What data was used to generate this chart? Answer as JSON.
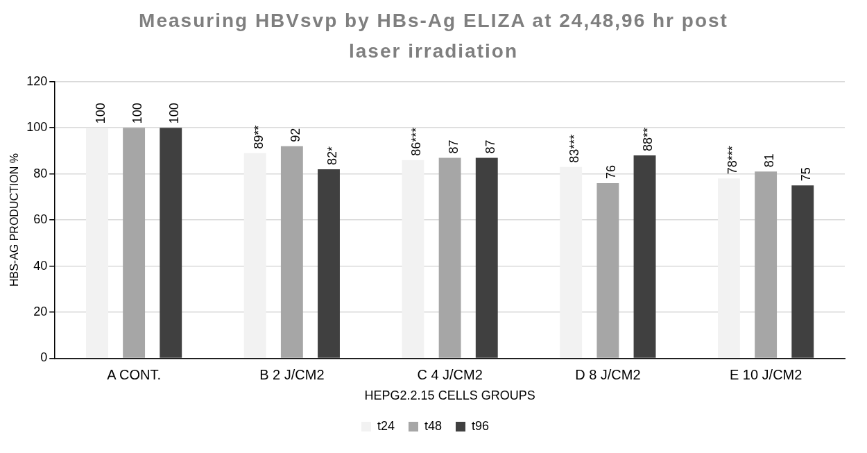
{
  "chart_data": {
    "type": "bar",
    "title": "Measuring HBVsvp by  HBs-Ag ELIZA  at 24,48,96 hr post laser irradiation",
    "xlabel": "HEPG2.2.15 CELLS GROUPS",
    "ylabel": "HBS-AG PRODUCTION %",
    "categories": [
      "A CONT.",
      "B 2 J/CM2",
      "C 4 J/CM2",
      "D 8 J/CM2",
      "E 10 J/CM2"
    ],
    "series": [
      {
        "name": "t24",
        "color": "#f2f2f2",
        "values": [
          100,
          89,
          86,
          83,
          78
        ],
        "value_labels": [
          "100",
          "89**",
          "86***",
          "83***",
          "78***"
        ]
      },
      {
        "name": "t48",
        "color": "#a6a6a6",
        "values": [
          100,
          92,
          87,
          76,
          81
        ],
        "value_labels": [
          "100",
          "92",
          "87",
          "76",
          "81"
        ]
      },
      {
        "name": "t96",
        "color": "#404040",
        "values": [
          100,
          82,
          87,
          88,
          75
        ],
        "value_labels": [
          "100",
          "82*",
          "87",
          "88**",
          "75"
        ]
      }
    ],
    "ylim": [
      0,
      120
    ],
    "yticks": [
      0,
      20,
      40,
      60,
      80,
      100,
      120
    ],
    "grid": "y",
    "legend": "bottom"
  }
}
